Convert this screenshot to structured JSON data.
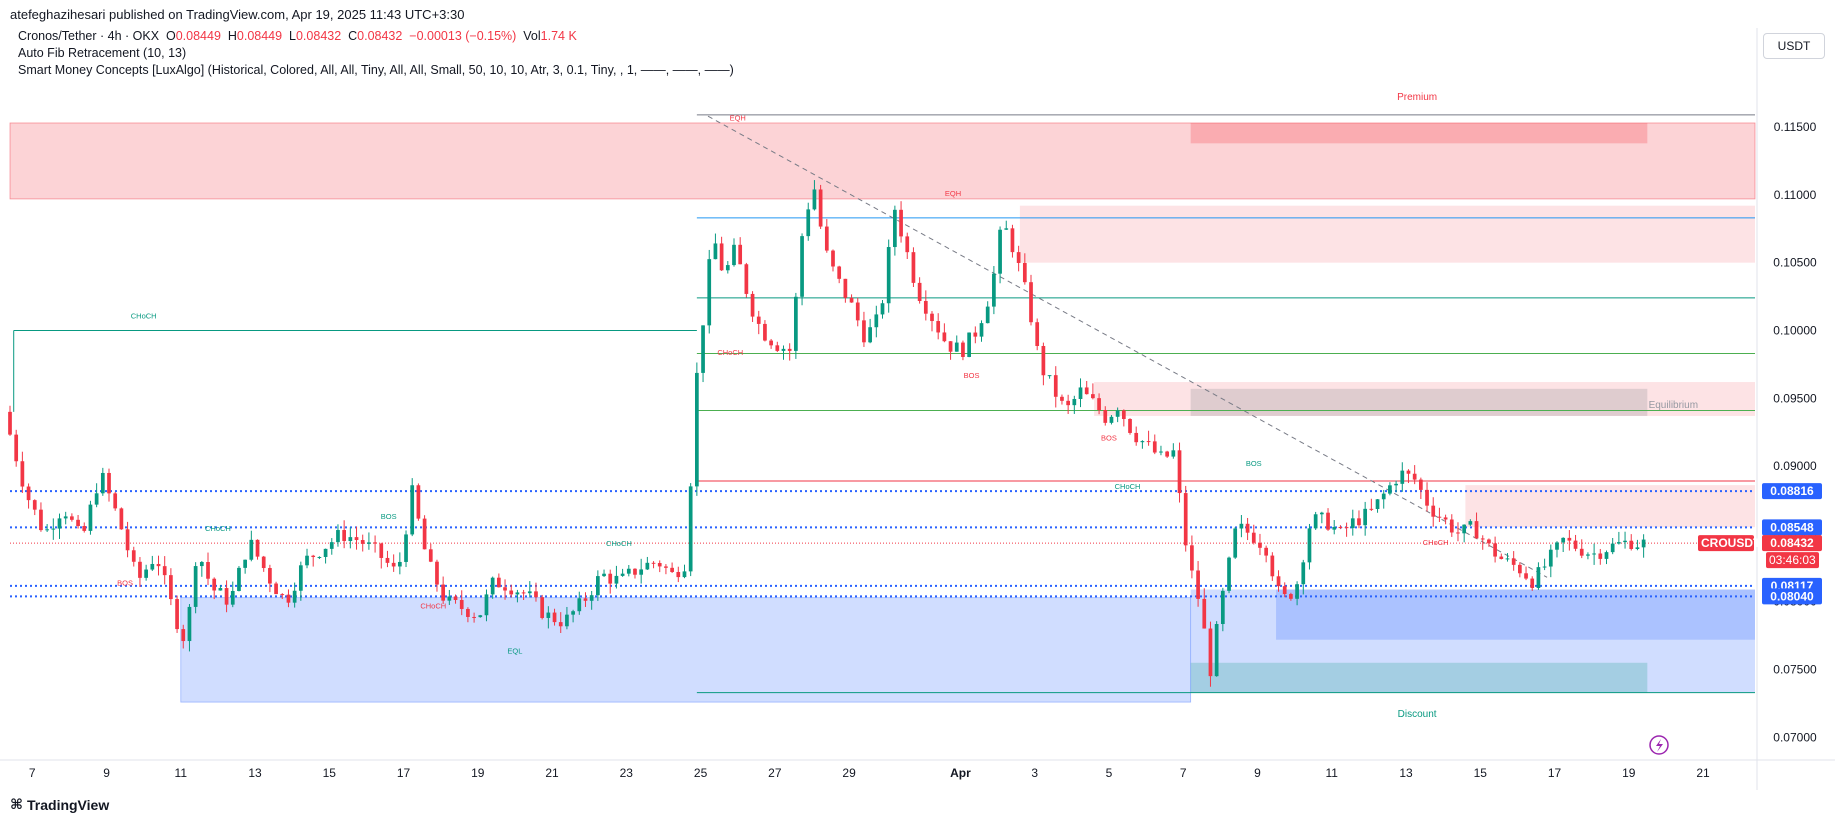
{
  "header": {
    "published": "atefeghazihesari published on TradingView.com, Apr 19, 2025 11:43 UTC+3:30",
    "symbol_line": {
      "symbol": "Cronos/Tether · 4h · OKX",
      "o_label": "O",
      "o": "0.08449",
      "h_label": "H",
      "h": "0.08449",
      "l_label": "L",
      "l": "0.08432",
      "c_label": "C",
      "c": "0.08432",
      "chg": "−0.00013 (−0.15%)",
      "vol_label": "Vol",
      "vol": "1.74 K"
    },
    "indicator1": "Auto Fib Retracement (10, 13)",
    "indicator2": "Smart Money Concepts [LuxAlgo] (Historical, Colored, All, All, Tiny, All, All, Small, 50, 10, 10, Atr, 3, 0.1, Tiny, , 1, ——, ——, ——)",
    "currency": "USDT"
  },
  "colors": {
    "up": "#089981",
    "down": "#f23645",
    "premium_zone": "#f2c6c9",
    "discount_zone": "#c7d0f3",
    "blue_line": "#2962ff",
    "text": "#131722"
  },
  "price_badges": [
    {
      "label": "0.08816",
      "value": 0.08816,
      "color": "#2962ff"
    },
    {
      "label": "0.08548",
      "value": 0.08548,
      "color": "#2962ff"
    },
    {
      "label": "0.08432",
      "value": 0.08432,
      "color": "#f23645"
    },
    {
      "label": "0.08117",
      "value": 0.08117,
      "color": "#2962ff"
    },
    {
      "label": "0.08040",
      "value": 0.0804,
      "color": "#2962ff"
    }
  ],
  "symbol_badge": {
    "label": "CROUSDT",
    "countdown": "03:46:03"
  },
  "zone_labels": {
    "premium": "Premium",
    "equilibrium": "Equilibrium",
    "discount": "Discount"
  },
  "annotations": [
    {
      "text": "CHoCH",
      "day": 10.0,
      "price": 0.1009,
      "color": "#089981"
    },
    {
      "text": "EQH",
      "day": 26.0,
      "price": 0.1155,
      "color": "#f23645"
    },
    {
      "text": "EQH",
      "day": 31.8,
      "price": 0.1099,
      "color": "#f23645"
    },
    {
      "text": "CHoCH",
      "day": 25.8,
      "price": 0.0982,
      "color": "#f23645"
    },
    {
      "text": "BOS",
      "day": 32.3,
      "price": 0.0965,
      "color": "#f23645"
    },
    {
      "text": "BOS",
      "day": 36.0,
      "price": 0.0919,
      "color": "#f23645"
    },
    {
      "text": "CHoCH",
      "day": 12.0,
      "price": 0.0852,
      "color": "#089981"
    },
    {
      "text": "BOS",
      "day": 16.6,
      "price": 0.0861,
      "color": "#089981"
    },
    {
      "text": "BOS",
      "day": 9.5,
      "price": 0.0812,
      "color": "#f23645"
    },
    {
      "text": "CHoCH",
      "day": 17.8,
      "price": 0.0795,
      "color": "#f23645"
    },
    {
      "text": "EQL",
      "day": 20.0,
      "price": 0.0762,
      "color": "#089981"
    },
    {
      "text": "CHoCH",
      "day": 22.8,
      "price": 0.0841,
      "color": "#089981"
    },
    {
      "text": "CHoCH",
      "day": 36.5,
      "price": 0.0883,
      "color": "#089981"
    },
    {
      "text": "BOS",
      "day": 39.9,
      "price": 0.09,
      "color": "#089981"
    },
    {
      "text": "CHoCH",
      "day": 44.8,
      "price": 0.0842,
      "color": "#f23645"
    }
  ],
  "footer": {
    "brand": "TradingView"
  },
  "chart_data": {
    "type": "candlestick",
    "symbol": "CROUSDT",
    "exchange": "OKX",
    "timeframe": "4h",
    "x_axis": {
      "ticks": [
        "7",
        "9",
        "11",
        "13",
        "15",
        "17",
        "19",
        "21",
        "23",
        "25",
        "27",
        "29",
        "Apr",
        "3",
        "5",
        "7",
        "9",
        "11",
        "13",
        "15",
        "17",
        "19",
        "21"
      ],
      "tick_days": [
        7,
        9,
        11,
        13,
        15,
        17,
        19,
        21,
        23,
        25,
        27,
        29,
        32,
        34,
        36,
        38,
        40,
        42,
        44,
        46,
        48,
        50,
        52
      ],
      "range_days": [
        6.4,
        53.4
      ],
      "note": "day numbers count from Mar 0 (Apr 1 = day 32)"
    },
    "y_axis": {
      "ticks": [
        0.115,
        0.11,
        0.105,
        0.1,
        0.095,
        0.09,
        0.085,
        0.08,
        0.075,
        0.07
      ],
      "tick_labels": [
        "0.11500",
        "0.11000",
        "0.10500",
        "0.10000",
        "0.09500",
        "0.09000",
        "0.08500",
        "0.08000",
        "0.07500",
        "0.07000"
      ],
      "ylim": [
        0.0687,
        0.1181
      ]
    },
    "ohlc_keypoints": [
      [
        6.4,
        0.094
      ],
      [
        7.0,
        0.088
      ],
      [
        7.5,
        0.085
      ],
      [
        8.0,
        0.087
      ],
      [
        8.5,
        0.0845
      ],
      [
        9.0,
        0.0895
      ],
      [
        9.5,
        0.086
      ],
      [
        10.0,
        0.0815
      ],
      [
        10.5,
        0.0835
      ],
      [
        11.0,
        0.079
      ],
      [
        11.3,
        0.077
      ],
      [
        11.6,
        0.084
      ],
      [
        12.0,
        0.081
      ],
      [
        12.5,
        0.08
      ],
      [
        13.0,
        0.0845
      ],
      [
        13.6,
        0.0815
      ],
      [
        14.0,
        0.08
      ],
      [
        14.5,
        0.083
      ],
      [
        15.0,
        0.084
      ],
      [
        15.5,
        0.085
      ],
      [
        16.0,
        0.0845
      ],
      [
        16.5,
        0.0835
      ],
      [
        17.0,
        0.082
      ],
      [
        17.4,
        0.088
      ],
      [
        17.8,
        0.083
      ],
      [
        18.3,
        0.08
      ],
      [
        18.8,
        0.0795
      ],
      [
        19.2,
        0.079
      ],
      [
        19.6,
        0.0815
      ],
      [
        20.0,
        0.0812
      ],
      [
        20.5,
        0.0805
      ],
      [
        21.0,
        0.079
      ],
      [
        21.5,
        0.0785
      ],
      [
        22.0,
        0.08
      ],
      [
        22.5,
        0.082
      ],
      [
        23.0,
        0.0815
      ],
      [
        23.5,
        0.0825
      ],
      [
        24.0,
        0.083
      ],
      [
        24.4,
        0.082
      ],
      [
        24.8,
        0.083
      ],
      [
        25.0,
        0.095
      ],
      [
        25.2,
        0.1
      ],
      [
        25.5,
        0.107
      ],
      [
        25.8,
        0.104
      ],
      [
        26.1,
        0.106
      ],
      [
        26.5,
        0.102
      ],
      [
        26.8,
        0.1
      ],
      [
        27.2,
        0.099
      ],
      [
        27.6,
        0.0985
      ],
      [
        27.9,
        0.107
      ],
      [
        28.2,
        0.111
      ],
      [
        28.5,
        0.106
      ],
      [
        28.8,
        0.104
      ],
      [
        29.2,
        0.102
      ],
      [
        29.6,
        0.0995
      ],
      [
        30.0,
        0.101
      ],
      [
        30.4,
        0.109
      ],
      [
        30.7,
        0.106
      ],
      [
        31.0,
        0.103
      ],
      [
        31.4,
        0.101
      ],
      [
        31.8,
        0.099
      ],
      [
        32.2,
        0.0985
      ],
      [
        32.6,
        0.1
      ],
      [
        33.0,
        0.103
      ],
      [
        33.3,
        0.108
      ],
      [
        33.6,
        0.106
      ],
      [
        34.0,
        0.102
      ],
      [
        34.3,
        0.0975
      ],
      [
        34.6,
        0.096
      ],
      [
        35.0,
        0.094
      ],
      [
        35.4,
        0.0955
      ],
      [
        35.8,
        0.0945
      ],
      [
        36.1,
        0.0935
      ],
      [
        36.4,
        0.0945
      ],
      [
        36.8,
        0.0925
      ],
      [
        37.2,
        0.0915
      ],
      [
        37.6,
        0.0905
      ],
      [
        37.9,
        0.091
      ],
      [
        38.1,
        0.087
      ],
      [
        38.3,
        0.083
      ],
      [
        38.6,
        0.08
      ],
      [
        38.9,
        0.075
      ],
      [
        39.2,
        0.08
      ],
      [
        39.6,
        0.0855
      ],
      [
        40.0,
        0.085
      ],
      [
        40.4,
        0.084
      ],
      [
        40.8,
        0.08
      ],
      [
        41.2,
        0.081
      ],
      [
        41.6,
        0.086
      ],
      [
        42.0,
        0.086
      ],
      [
        42.4,
        0.085
      ],
      [
        42.8,
        0.086
      ],
      [
        43.2,
        0.0865
      ],
      [
        43.6,
        0.088
      ],
      [
        44.0,
        0.0895
      ],
      [
        44.4,
        0.089
      ],
      [
        44.8,
        0.087
      ],
      [
        45.2,
        0.086
      ],
      [
        45.6,
        0.085
      ],
      [
        46.0,
        0.0855
      ],
      [
        46.4,
        0.084
      ],
      [
        46.8,
        0.083
      ],
      [
        47.2,
        0.0825
      ],
      [
        47.6,
        0.0815
      ],
      [
        48.0,
        0.083
      ],
      [
        48.4,
        0.0845
      ],
      [
        48.8,
        0.084
      ],
      [
        49.2,
        0.0835
      ],
      [
        49.6,
        0.084
      ],
      [
        50.0,
        0.0843
      ],
      [
        50.3,
        0.0845
      ],
      [
        50.4,
        0.0843
      ]
    ],
    "last_price": 0.08432,
    "premium_zone": [
      0.1097,
      0.1153
    ],
    "discount_zone": [
      0.0726,
      0.0803
    ],
    "levels": [
      {
        "price": 0.08816,
        "style": "dotted",
        "color": "#2962ff"
      },
      {
        "price": 0.08548,
        "style": "dotted",
        "color": "#2962ff"
      },
      {
        "price": 0.08117,
        "style": "dotted",
        "color": "#2962ff"
      },
      {
        "price": 0.0804,
        "style": "dotted",
        "color": "#2962ff"
      },
      {
        "price": 0.1,
        "style": "solid",
        "color": "#089981",
        "from_day": 6.5,
        "to_day": 24.9
      }
    ],
    "fib_levels": [
      {
        "price": 0.1159,
        "color": "#787b86"
      },
      {
        "price": 0.1083,
        "color": "#2196f3"
      },
      {
        "price": 0.1024,
        "color": "#089981"
      },
      {
        "price": 0.0983,
        "color": "#4caf50"
      },
      {
        "price": 0.0941,
        "color": "#4caf50"
      },
      {
        "price": 0.0889,
        "color": "#f23645"
      },
      {
        "price": 0.0733,
        "color": "#089981"
      }
    ]
  }
}
